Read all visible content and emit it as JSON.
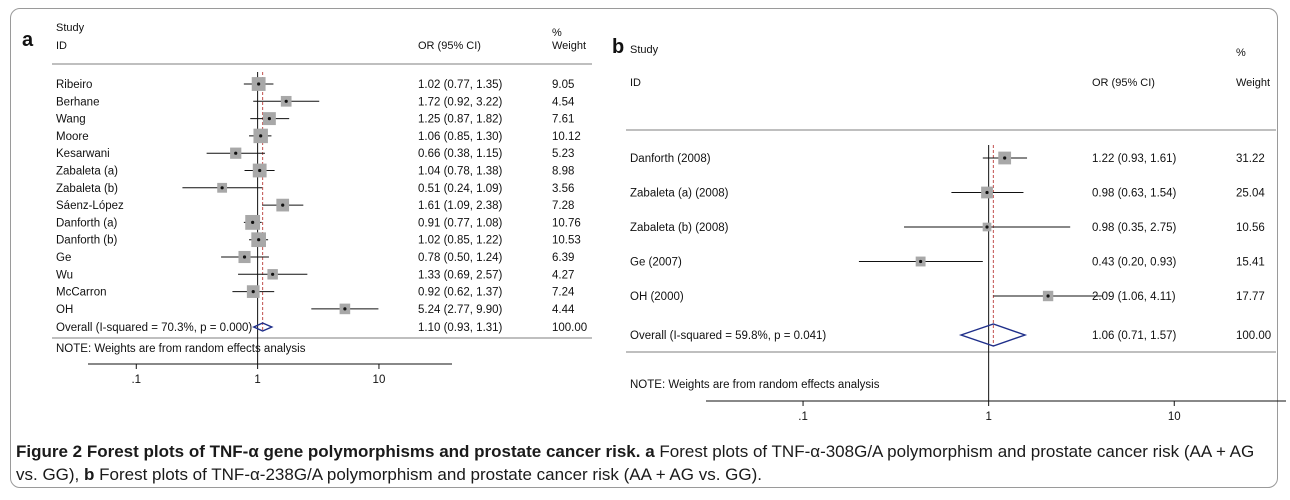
{
  "chart_data": [
    {
      "type": "forest",
      "panel_label": "a",
      "header": {
        "study": "Study",
        "id": "ID",
        "or": "OR (95% CI)",
        "pct": "%",
        "weight": "Weight"
      },
      "studies": [
        {
          "name": "Ribeiro",
          "or": 1.02,
          "lo": 0.77,
          "hi": 1.35,
          "or_text": "1.02 (0.77, 1.35)",
          "weight": 9.05,
          "weight_text": "9.05"
        },
        {
          "name": "Berhane",
          "or": 1.72,
          "lo": 0.92,
          "hi": 3.22,
          "or_text": "1.72 (0.92, 3.22)",
          "weight": 4.54,
          "weight_text": "4.54"
        },
        {
          "name": "Wang",
          "or": 1.25,
          "lo": 0.87,
          "hi": 1.82,
          "or_text": "1.25 (0.87, 1.82)",
          "weight": 7.61,
          "weight_text": "7.61"
        },
        {
          "name": "Moore",
          "or": 1.06,
          "lo": 0.85,
          "hi": 1.3,
          "or_text": "1.06 (0.85, 1.30)",
          "weight": 10.12,
          "weight_text": "10.12"
        },
        {
          "name": "Kesarwani",
          "or": 0.66,
          "lo": 0.38,
          "hi": 1.15,
          "or_text": "0.66 (0.38, 1.15)",
          "weight": 5.23,
          "weight_text": "5.23"
        },
        {
          "name": "Zabaleta (a)",
          "or": 1.04,
          "lo": 0.78,
          "hi": 1.38,
          "or_text": "1.04 (0.78, 1.38)",
          "weight": 8.98,
          "weight_text": "8.98"
        },
        {
          "name": "Zabaleta (b)",
          "or": 0.51,
          "lo": 0.24,
          "hi": 1.09,
          "or_text": "0.51 (0.24, 1.09)",
          "weight": 3.56,
          "weight_text": "3.56"
        },
        {
          "name": "Sáenz-López",
          "or": 1.61,
          "lo": 1.09,
          "hi": 2.38,
          "or_text": "1.61 (1.09, 2.38)",
          "weight": 7.28,
          "weight_text": "7.28"
        },
        {
          "name": "Danforth (a)",
          "or": 0.91,
          "lo": 0.77,
          "hi": 1.08,
          "or_text": "0.91 (0.77, 1.08)",
          "weight": 10.76,
          "weight_text": "10.76"
        },
        {
          "name": "Danforth (b)",
          "or": 1.02,
          "lo": 0.85,
          "hi": 1.22,
          "or_text": "1.02 (0.85, 1.22)",
          "weight": 10.53,
          "weight_text": "10.53"
        },
        {
          "name": "Ge",
          "or": 0.78,
          "lo": 0.5,
          "hi": 1.24,
          "or_text": "0.78 (0.50, 1.24)",
          "weight": 6.39,
          "weight_text": "6.39"
        },
        {
          "name": "Wu",
          "or": 1.33,
          "lo": 0.69,
          "hi": 2.57,
          "or_text": "1.33 (0.69, 2.57)",
          "weight": 4.27,
          "weight_text": "4.27"
        },
        {
          "name": "McCarron",
          "or": 0.92,
          "lo": 0.62,
          "hi": 1.37,
          "or_text": "0.92 (0.62, 1.37)",
          "weight": 7.24,
          "weight_text": "7.24"
        },
        {
          "name": "OH",
          "or": 5.24,
          "lo": 2.77,
          "hi": 9.9,
          "or_text": "5.24 (2.77, 9.90)",
          "weight": 4.44,
          "weight_text": "4.44"
        }
      ],
      "overall": {
        "label": "Overall  (I-squared = 70.3%, p = 0.000)",
        "or": 1.1,
        "lo": 0.93,
        "hi": 1.31,
        "or_text": "1.10 (0.93, 1.31)",
        "weight_text": "100.00"
      },
      "note": "NOTE: Weights are from random effects analysis",
      "x_scale": "log",
      "xlim": [
        0.04,
        40
      ],
      "xticks": [
        0.1,
        1,
        10
      ],
      "xtick_labels": [
        ".1",
        "1",
        "10"
      ]
    },
    {
      "type": "forest",
      "panel_label": "b",
      "header": {
        "study": "Study",
        "id": "ID",
        "or": "OR (95% CI)",
        "pct": "%",
        "weight": "Weight"
      },
      "studies": [
        {
          "name": "Danforth  (2008)",
          "or": 1.22,
          "lo": 0.93,
          "hi": 1.61,
          "or_text": "1.22 (0.93, 1.61)",
          "weight": 31.22,
          "weight_text": "31.22"
        },
        {
          "name": "Zabaleta (a) (2008)",
          "or": 0.98,
          "lo": 0.63,
          "hi": 1.54,
          "or_text": "0.98 (0.63, 1.54)",
          "weight": 25.04,
          "weight_text": "25.04"
        },
        {
          "name": "Zabaleta (b) (2008)",
          "or": 0.98,
          "lo": 0.35,
          "hi": 2.75,
          "or_text": "0.98 (0.35, 2.75)",
          "weight": 10.56,
          "weight_text": "10.56"
        },
        {
          "name": "Ge (2007)",
          "or": 0.43,
          "lo": 0.2,
          "hi": 0.93,
          "or_text": "0.43 (0.20, 0.93)",
          "weight": 15.41,
          "weight_text": "15.41"
        },
        {
          "name": "OH (2000)",
          "or": 2.09,
          "lo": 1.06,
          "hi": 4.11,
          "or_text": "2.09 (1.06, 4.11)",
          "weight": 17.77,
          "weight_text": "17.77"
        }
      ],
      "overall": {
        "label": "Overall  (I-squared = 59.8%, p = 0.041)",
        "or": 1.06,
        "lo": 0.71,
        "hi": 1.57,
        "or_text": "1.06 (0.71, 1.57)",
        "weight_text": "100.00"
      },
      "note": "NOTE: Weights are from random effects analysis",
      "x_scale": "log",
      "xlim": [
        0.03,
        40
      ],
      "xticks": [
        0.1,
        1,
        10
      ],
      "xtick_labels": [
        ".1",
        "1",
        "10"
      ]
    }
  ],
  "caption": {
    "bold": "Figure 2 Forest plots of TNF-α gene polymorphisms and prostate cancer risk.",
    "a_label": "a",
    "a_text": "Forest plots of TNF-α-308G/A polymorphism and prostate cancer risk (AA + AG vs. GG),",
    "b_label": "b",
    "b_text": "Forest plots of TNF-α-238G/A polymorphism and prostate cancer risk (AA + AG vs. GG)."
  },
  "colors": {
    "diamond": "#1f2f8a",
    "dashed": "#c0504d",
    "box": "#a8a8a8",
    "line": "#111111",
    "border": "#9a9a9a"
  }
}
